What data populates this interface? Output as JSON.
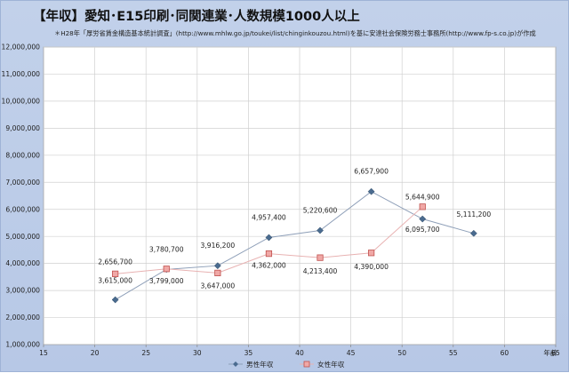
{
  "chart_data": {
    "type": "line",
    "title": "【年収】愛知･E15印刷･同関連業･人数規模1000人以上",
    "subtitle": "＊H28年「厚労省賃金構造基本統計調査」(http://www.mhlw.go.jp/toukei/list/chinginkouzou.html)を基に安達社会保険労務士事務所(http://www.fp-s.co.jp)が作成",
    "xlabel": "年齢",
    "xlim": [
      15,
      65
    ],
    "ylim": [
      1000000,
      12000000
    ],
    "x_ticks": [
      "15",
      "20",
      "25",
      "30",
      "35",
      "40",
      "45",
      "50",
      "55",
      "60",
      "65"
    ],
    "y_ticks": [
      "1,000,000",
      "2,000,000",
      "3,000,000",
      "4,000,000",
      "5,000,000",
      "6,000,000",
      "7,000,000",
      "8,000,000",
      "9,000,000",
      "10,000,000",
      "11,000,000",
      "12,000,000"
    ],
    "grid": true,
    "legend_position": "bottom",
    "series": [
      {
        "name": "男性年収",
        "color": "#4a6b8f",
        "marker": "diamond",
        "x": [
          22,
          27,
          32,
          37,
          42,
          47,
          52,
          57
        ],
        "values": [
          2656700,
          3780700,
          3916200,
          4957400,
          5220600,
          6657900,
          5644900,
          5111200
        ],
        "labels": [
          "2,656,700",
          "3,780,700",
          "3,916,200",
          "4,957,400",
          "5,220,600",
          "6,657,900",
          "5,644,900",
          "5,111,200"
        ]
      },
      {
        "name": "女性年収",
        "color": "#c0504d",
        "marker": "square",
        "x": [
          22,
          27,
          32,
          37,
          42,
          47,
          52
        ],
        "values": [
          3615000,
          3799000,
          3647000,
          4362000,
          4213400,
          4390000,
          6095700
        ],
        "labels": [
          "3,615,000",
          "3,799,000",
          "3,647,000",
          "4,362,000",
          "4,213,400",
          "4,390,000",
          "6,095,700"
        ]
      }
    ]
  }
}
